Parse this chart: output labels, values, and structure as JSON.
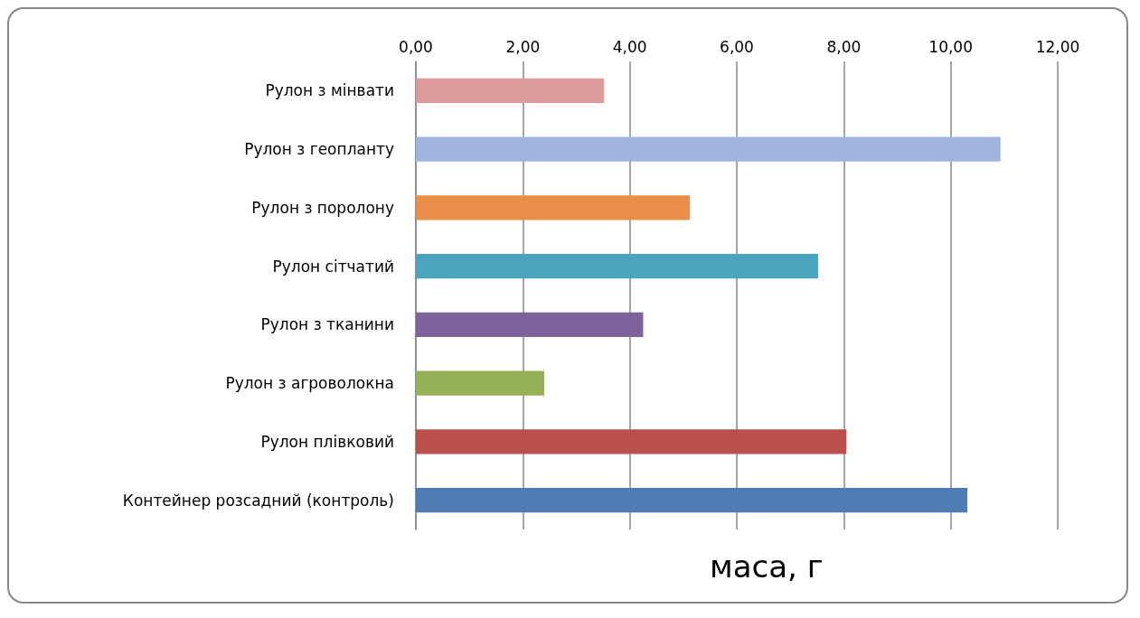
{
  "chart_data": {
    "type": "bar",
    "orientation": "horizontal",
    "xlabel": "маса, г",
    "categories": [
      "Рулон з мінвати",
      "Рулон з геопланту",
      "Рулон з поролону",
      "Рулон сітчатий",
      "Рулон з тканини",
      "Рулон з агроволокна",
      "Рулон плівковий",
      "Контейнер розсадний (контроль)"
    ],
    "values": [
      3.52,
      10.93,
      5.12,
      7.52,
      4.25,
      2.4,
      8.05,
      10.31
    ],
    "colors": [
      "#dd9c9c",
      "#9fb4dc",
      "#e88e48",
      "#4ba4bd",
      "#7e629b",
      "#95b157",
      "#b9504c",
      "#4f7db3"
    ],
    "xlim": [
      0,
      12
    ],
    "xticks": [
      {
        "value": 0,
        "label": "0,00"
      },
      {
        "value": 2,
        "label": "2,00"
      },
      {
        "value": 4,
        "label": "4,00"
      },
      {
        "value": 6,
        "label": "6,00"
      },
      {
        "value": 8,
        "label": "8,00"
      },
      {
        "value": 10,
        "label": "10,00"
      },
      {
        "value": 12,
        "label": "12,00"
      }
    ],
    "grid": "x"
  }
}
